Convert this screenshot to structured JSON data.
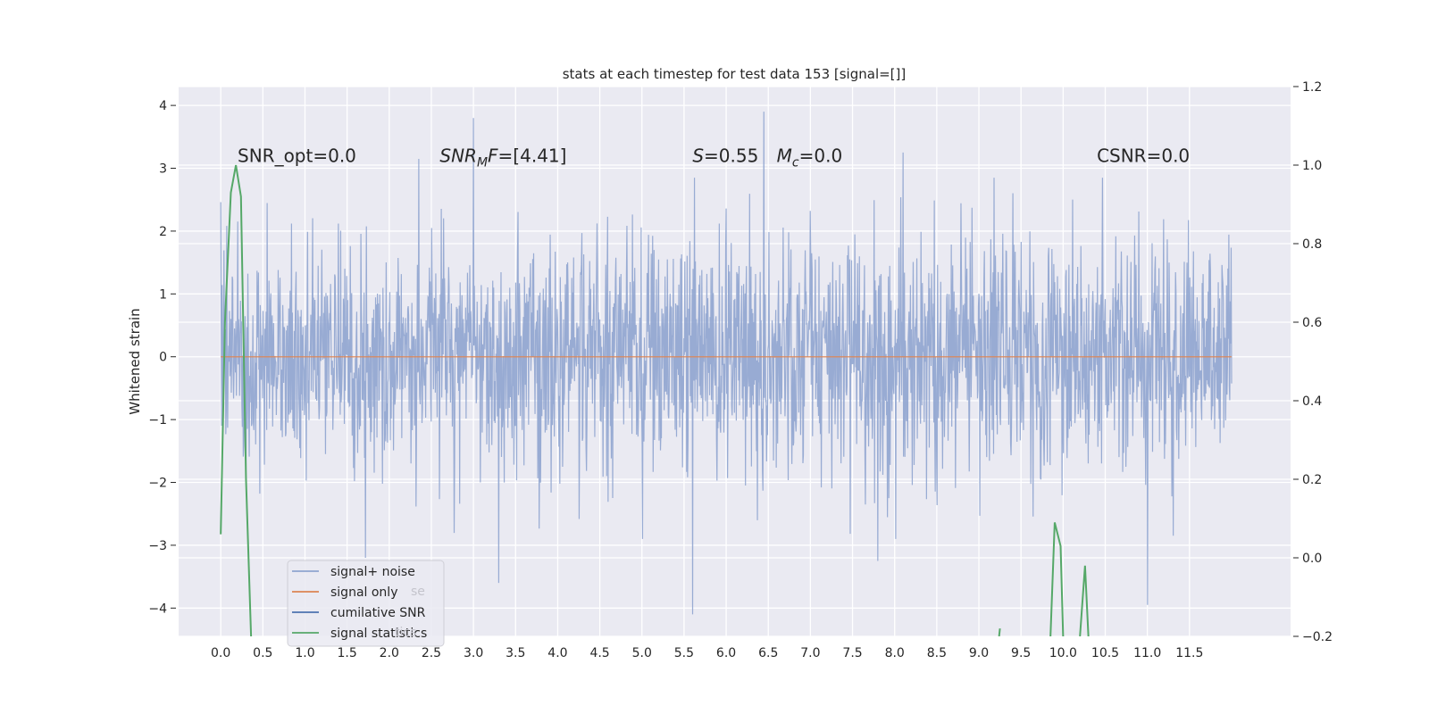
{
  "chart_data": {
    "type": "line",
    "title": "stats at each timestep for test data 153 [signal=[]]",
    "ylabel": "Whitened strain",
    "xlim": [
      -0.5,
      12.7
    ],
    "ylim": [
      -4.45,
      4.3
    ],
    "y2lim": [
      -0.2,
      1.2
    ],
    "grid": true,
    "legend_position": "lower-left",
    "x_ticks": [
      "0.0",
      "0.5",
      "1.0",
      "1.5",
      "2.0",
      "2.5",
      "3.0",
      "3.5",
      "4.0",
      "4.5",
      "5.0",
      "5.5",
      "6.0",
      "6.5",
      "7.0",
      "7.5",
      "8.0",
      "8.5",
      "9.0",
      "9.5",
      "10.0",
      "10.5",
      "11.0",
      "11.5"
    ],
    "y_ticks": [
      "−4",
      "−3",
      "−2",
      "−1",
      "0",
      "1",
      "2",
      "3",
      "4"
    ],
    "y2_ticks": [
      "−0.2",
      "0.0",
      "0.2",
      "0.4",
      "0.6",
      "0.8",
      "1.0",
      "1.2"
    ],
    "annotations": [
      {
        "text": "SNR_opt=0.0",
        "x": 0.2
      },
      {
        "text": "SNR_MF=[4.41]",
        "x": 2.6
      },
      {
        "text": "S=0.55",
        "x": 5.6
      },
      {
        "text": "M_c=0.0",
        "x": 6.6
      },
      {
        "text": "CSNR=0.0",
        "x": 10.4
      }
    ],
    "annotation_y": 3.1,
    "colors": {
      "signal_noise": "#8fa4cf",
      "signal_only": "#dd8452",
      "cumulative_snr": "#4c72b0",
      "signal_statistics": "#55a868",
      "plot_bg": "#eaeaf2",
      "grid": "#ffffff"
    },
    "series": [
      {
        "name": "signal+ noise",
        "axis": "left",
        "x_range": [
          0.0,
          12.0
        ],
        "spikes": [
          {
            "x": 3.0,
            "y": 3.8
          },
          {
            "x": 6.45,
            "y": 3.9
          },
          {
            "x": 8.1,
            "y": 3.25
          },
          {
            "x": 2.35,
            "y": 3.15
          },
          {
            "x": 5.6,
            "y": -4.1
          },
          {
            "x": 11.0,
            "y": -3.95
          },
          {
            "x": 3.3,
            "y": -3.6
          },
          {
            "x": 1.72,
            "y": -3.2
          },
          {
            "x": 7.8,
            "y": -3.25
          }
        ]
      },
      {
        "name": "signal only",
        "axis": "left",
        "x": [
          0.0,
          12.0
        ],
        "y": [
          0.0,
          0.0
        ]
      },
      {
        "name": "cumilative SNR",
        "axis": "right",
        "x": [],
        "y": []
      },
      {
        "name": "signal statistics",
        "axis": "right",
        "segments": [
          {
            "x": [
              0.0,
              0.05,
              0.12,
              0.18,
              0.24,
              0.3,
              0.36
            ],
            "y": [
              0.06,
              0.6,
              0.93,
              1.0,
              0.92,
              0.2,
              -0.2
            ]
          },
          {
            "x": [
              9.24,
              9.25
            ],
            "y": [
              -0.2,
              -0.18
            ]
          },
          {
            "x": [
              9.85,
              9.9,
              9.97,
              10.0
            ],
            "y": [
              -0.2,
              0.09,
              0.03,
              -0.2
            ]
          },
          {
            "x": [
              10.2,
              10.26,
              10.3
            ],
            "y": [
              -0.2,
              -0.02,
              -0.2
            ]
          }
        ]
      }
    ],
    "legend": [
      "signal+ noise",
      "signal only",
      "cumilative SNR",
      "signal statistics"
    ],
    "legend_ghost": [
      "se",
      "tics"
    ]
  }
}
